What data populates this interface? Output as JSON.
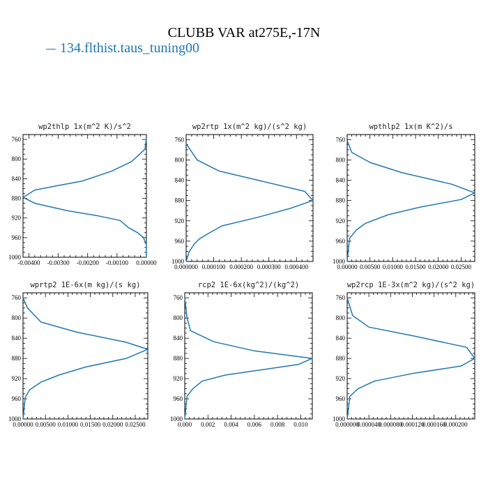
{
  "figure": {
    "title": "CLUBB VAR at275E,-17N",
    "legend_label": "134.flthist.taus_tuning00",
    "line_color": "#1f77b4"
  },
  "chart_data": [
    {
      "type": "line",
      "title": "wp2thlp  1x(m^2 K)/s^2",
      "ylim": [
        1000,
        750
      ],
      "xlim": [
        -0.0042,
        0.0
      ],
      "xticks": [
        -0.004,
        -0.003,
        -0.002,
        -0.001,
        0.0
      ],
      "xtick_labels": [
        "-0.00400",
        "-0.00300",
        "-0.00200",
        "-0.00100",
        "0.00000"
      ],
      "yticks": [
        760,
        800,
        840,
        880,
        920,
        960,
        1000
      ],
      "ytick_labels": [
        "760",
        "800",
        "840",
        "880",
        "920",
        "960",
        "1000"
      ],
      "x": [
        0.0,
        -5e-05,
        -0.0005,
        -0.0012,
        -0.0022,
        -0.0031,
        -0.0038,
        -0.0042,
        -0.0038,
        -0.0027,
        -0.0017,
        -0.0009,
        -0.0006,
        -0.0003,
        -0.0001,
        0.0,
        0.0
      ],
      "y": [
        758,
        780,
        805,
        825,
        845,
        855,
        863,
        878,
        890,
        905,
        915,
        925,
        940,
        950,
        960,
        975,
        1000
      ]
    },
    {
      "type": "line",
      "title": "wp2rtp  1x(m^2 kg)/(s^2 kg)",
      "ylim": [
        1000,
        750
      ],
      "xlim": [
        0.0,
        0.00046
      ],
      "xticks": [
        0.0,
        0.0001,
        0.0002,
        0.0003,
        0.0004
      ],
      "xtick_labels": [
        "0.000000",
        "0.000100",
        "0.000200",
        "0.000300",
        "0.000400"
      ],
      "yticks": [
        760,
        800,
        840,
        880,
        920,
        960,
        1000
      ],
      "ytick_labels": [
        "760",
        "800",
        "840",
        "880",
        "920",
        "960",
        "1000"
      ],
      "x": [
        0.0,
        4e-05,
        0.00012,
        0.00026,
        0.00043,
        0.00046,
        0.00038,
        0.00026,
        0.00013,
        8e-05,
        5e-05,
        3e-05,
        1e-05,
        0.0
      ],
      "y": [
        768,
        800,
        822,
        840,
        862,
        880,
        895,
        913,
        930,
        945,
        955,
        965,
        982,
        1000
      ]
    },
    {
      "type": "line",
      "title": "wpthlp2  1x(m K^2)/s",
      "ylim": [
        1000,
        750
      ],
      "xlim": [
        0.0,
        0.028
      ],
      "xticks": [
        0.0,
        0.005,
        0.01,
        0.015,
        0.02,
        0.025
      ],
      "xtick_labels": [
        "0.00000",
        "0.00500",
        "0.01000",
        "0.01500",
        "0.02000",
        "0.02500"
      ],
      "yticks": [
        760,
        800,
        840,
        880,
        920,
        960,
        1000
      ],
      "ytick_labels": [
        "760",
        "800",
        "840",
        "880",
        "920",
        "960",
        "1000"
      ],
      "x": [
        0.0,
        0.001,
        0.005,
        0.012,
        0.023,
        0.028,
        0.025,
        0.016,
        0.009,
        0.004,
        0.002,
        0.0005,
        0.0
      ],
      "y": [
        762,
        785,
        805,
        825,
        848,
        865,
        878,
        893,
        908,
        925,
        938,
        955,
        1000
      ]
    },
    {
      "type": "line",
      "title": "wprtp2  1E-6x(m kg)/(s kg)",
      "ylim": [
        1000,
        750
      ],
      "xlim": [
        0.0,
        0.0278
      ],
      "xticks": [
        0.0,
        0.005,
        0.01,
        0.015,
        0.02,
        0.025
      ],
      "xtick_labels": [
        "0.00000",
        "0.00500",
        "0.01000",
        "0.01500",
        "0.02000",
        "0.02500"
      ],
      "yticks": [
        760,
        800,
        840,
        880,
        920,
        960,
        1000
      ],
      "ytick_labels": [
        "760",
        "800",
        "840",
        "880",
        "920",
        "960",
        "1000"
      ],
      "x": [
        0.0,
        0.001,
        0.004,
        0.012,
        0.023,
        0.0278,
        0.023,
        0.014,
        0.008,
        0.004,
        0.0015,
        0.0005,
        0.0
      ],
      "y": [
        760,
        780,
        808,
        828,
        848,
        862,
        880,
        897,
        913,
        927,
        942,
        957,
        1000
      ]
    },
    {
      "type": "line",
      "title": "rcp2  1E-6x(kg^2)/(kg^2)",
      "ylim": [
        1000,
        750
      ],
      "xlim": [
        0.0,
        0.011
      ],
      "xticks": [
        0.0,
        0.002,
        0.004,
        0.006,
        0.008,
        0.01
      ],
      "xtick_labels": [
        "0.000",
        "0.002",
        "0.004",
        "0.006",
        "0.008",
        "0.010"
      ],
      "yticks": [
        760,
        800,
        840,
        880,
        920,
        960,
        1000
      ],
      "ytick_labels": [
        "760",
        "800",
        "840",
        "880",
        "920",
        "960",
        "1000"
      ],
      "x": [
        0.0,
        0.0002,
        0.0005,
        0.0025,
        0.006,
        0.011,
        0.0098,
        0.0065,
        0.0035,
        0.0015,
        0.0007,
        0.0002,
        0.0
      ],
      "y": [
        760,
        800,
        825,
        847,
        865,
        880,
        892,
        903,
        913,
        925,
        940,
        955,
        1000
      ]
    },
    {
      "type": "line",
      "title": "wp2rcp  1E-3x(m^2 kg)/(s^2 kg)",
      "ylim": [
        1000,
        750
      ],
      "xlim": [
        0.0,
        0.000235
      ],
      "xticks": [
        0.0,
        4e-05,
        8e-05,
        0.00012,
        0.00016,
        0.0002
      ],
      "xtick_labels": [
        "0.000000",
        "0.000040",
        "0.000080",
        "0.000120",
        "0.000160",
        "0.000200"
      ],
      "yticks": [
        760,
        800,
        840,
        880,
        920,
        960,
        1000
      ],
      "ytick_labels": [
        "760",
        "800",
        "840",
        "880",
        "920",
        "960",
        "1000"
      ],
      "x": [
        0.0,
        1e-05,
        4e-05,
        0.00012,
        0.00022,
        0.000235,
        0.00021,
        0.00012,
        5e-05,
        2e-05,
        5e-06,
        0.0
      ],
      "y": [
        760,
        795,
        818,
        835,
        858,
        880,
        895,
        910,
        925,
        940,
        955,
        1000
      ]
    }
  ]
}
